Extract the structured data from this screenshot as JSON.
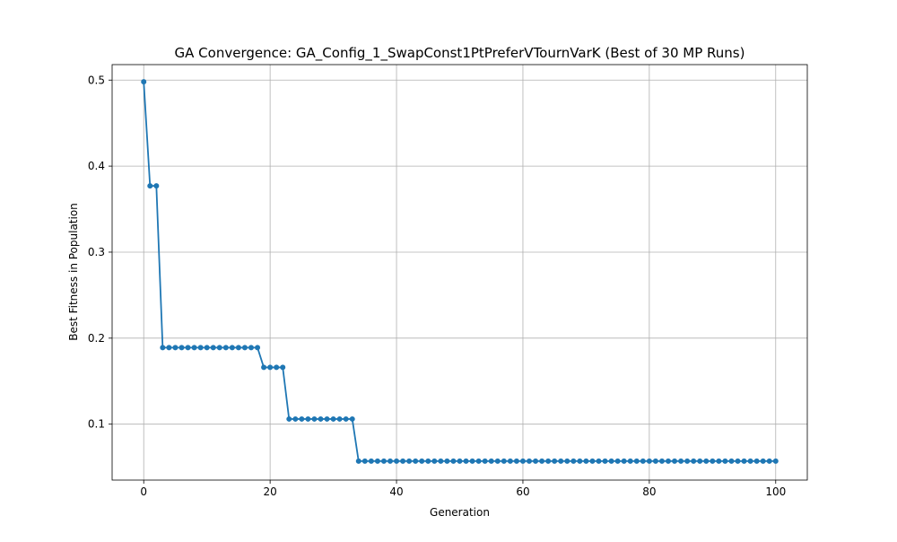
{
  "chart_data": {
    "type": "line",
    "title": "GA Convergence: GA_Config_1_SwapConst1PtPreferVTournVarK (Best of 30 MP Runs)",
    "xlabel": "Generation",
    "ylabel": "Best Fitness in Population",
    "xlim": [
      -5,
      105
    ],
    "ylim": [
      0.035,
      0.518
    ],
    "xticks": [
      0,
      20,
      40,
      60,
      80,
      100
    ],
    "xtick_labels": [
      "0",
      "20",
      "40",
      "60",
      "80",
      "100"
    ],
    "yticks": [
      0.1,
      0.2,
      0.3,
      0.4,
      0.5
    ],
    "ytick_labels": [
      "0.1",
      "0.2",
      "0.3",
      "0.4",
      "0.5"
    ],
    "grid": true,
    "marker": "circle",
    "series": [
      {
        "color": "#1f77b4",
        "x": [
          0,
          1,
          2,
          3,
          4,
          5,
          6,
          7,
          8,
          9,
          10,
          11,
          12,
          13,
          14,
          15,
          16,
          17,
          18,
          19,
          20,
          21,
          22,
          23,
          24,
          25,
          26,
          27,
          28,
          29,
          30,
          31,
          32,
          33,
          34,
          35,
          36,
          37,
          38,
          39,
          40,
          41,
          42,
          43,
          44,
          45,
          46,
          47,
          48,
          49,
          50,
          51,
          52,
          53,
          54,
          55,
          56,
          57,
          58,
          59,
          60,
          61,
          62,
          63,
          64,
          65,
          66,
          67,
          68,
          69,
          70,
          71,
          72,
          73,
          74,
          75,
          76,
          77,
          78,
          79,
          80,
          81,
          82,
          83,
          84,
          85,
          86,
          87,
          88,
          89,
          90,
          91,
          92,
          93,
          94,
          95,
          96,
          97,
          98,
          99,
          100
        ],
        "y": [
          0.498,
          0.377,
          0.377,
          0.189,
          0.189,
          0.189,
          0.189,
          0.189,
          0.189,
          0.189,
          0.189,
          0.189,
          0.189,
          0.189,
          0.189,
          0.189,
          0.189,
          0.189,
          0.189,
          0.166,
          0.166,
          0.166,
          0.166,
          0.106,
          0.106,
          0.106,
          0.106,
          0.106,
          0.106,
          0.106,
          0.106,
          0.106,
          0.106,
          0.106,
          0.057,
          0.057,
          0.057,
          0.057,
          0.057,
          0.057,
          0.057,
          0.057,
          0.057,
          0.057,
          0.057,
          0.057,
          0.057,
          0.057,
          0.057,
          0.057,
          0.057,
          0.057,
          0.057,
          0.057,
          0.057,
          0.057,
          0.057,
          0.057,
          0.057,
          0.057,
          0.057,
          0.057,
          0.057,
          0.057,
          0.057,
          0.057,
          0.057,
          0.057,
          0.057,
          0.057,
          0.057,
          0.057,
          0.057,
          0.057,
          0.057,
          0.057,
          0.057,
          0.057,
          0.057,
          0.057,
          0.057,
          0.057,
          0.057,
          0.057,
          0.057,
          0.057,
          0.057,
          0.057,
          0.057,
          0.057,
          0.057,
          0.057,
          0.057,
          0.057,
          0.057,
          0.057,
          0.057,
          0.057,
          0.057,
          0.057,
          0.057
        ]
      }
    ]
  }
}
